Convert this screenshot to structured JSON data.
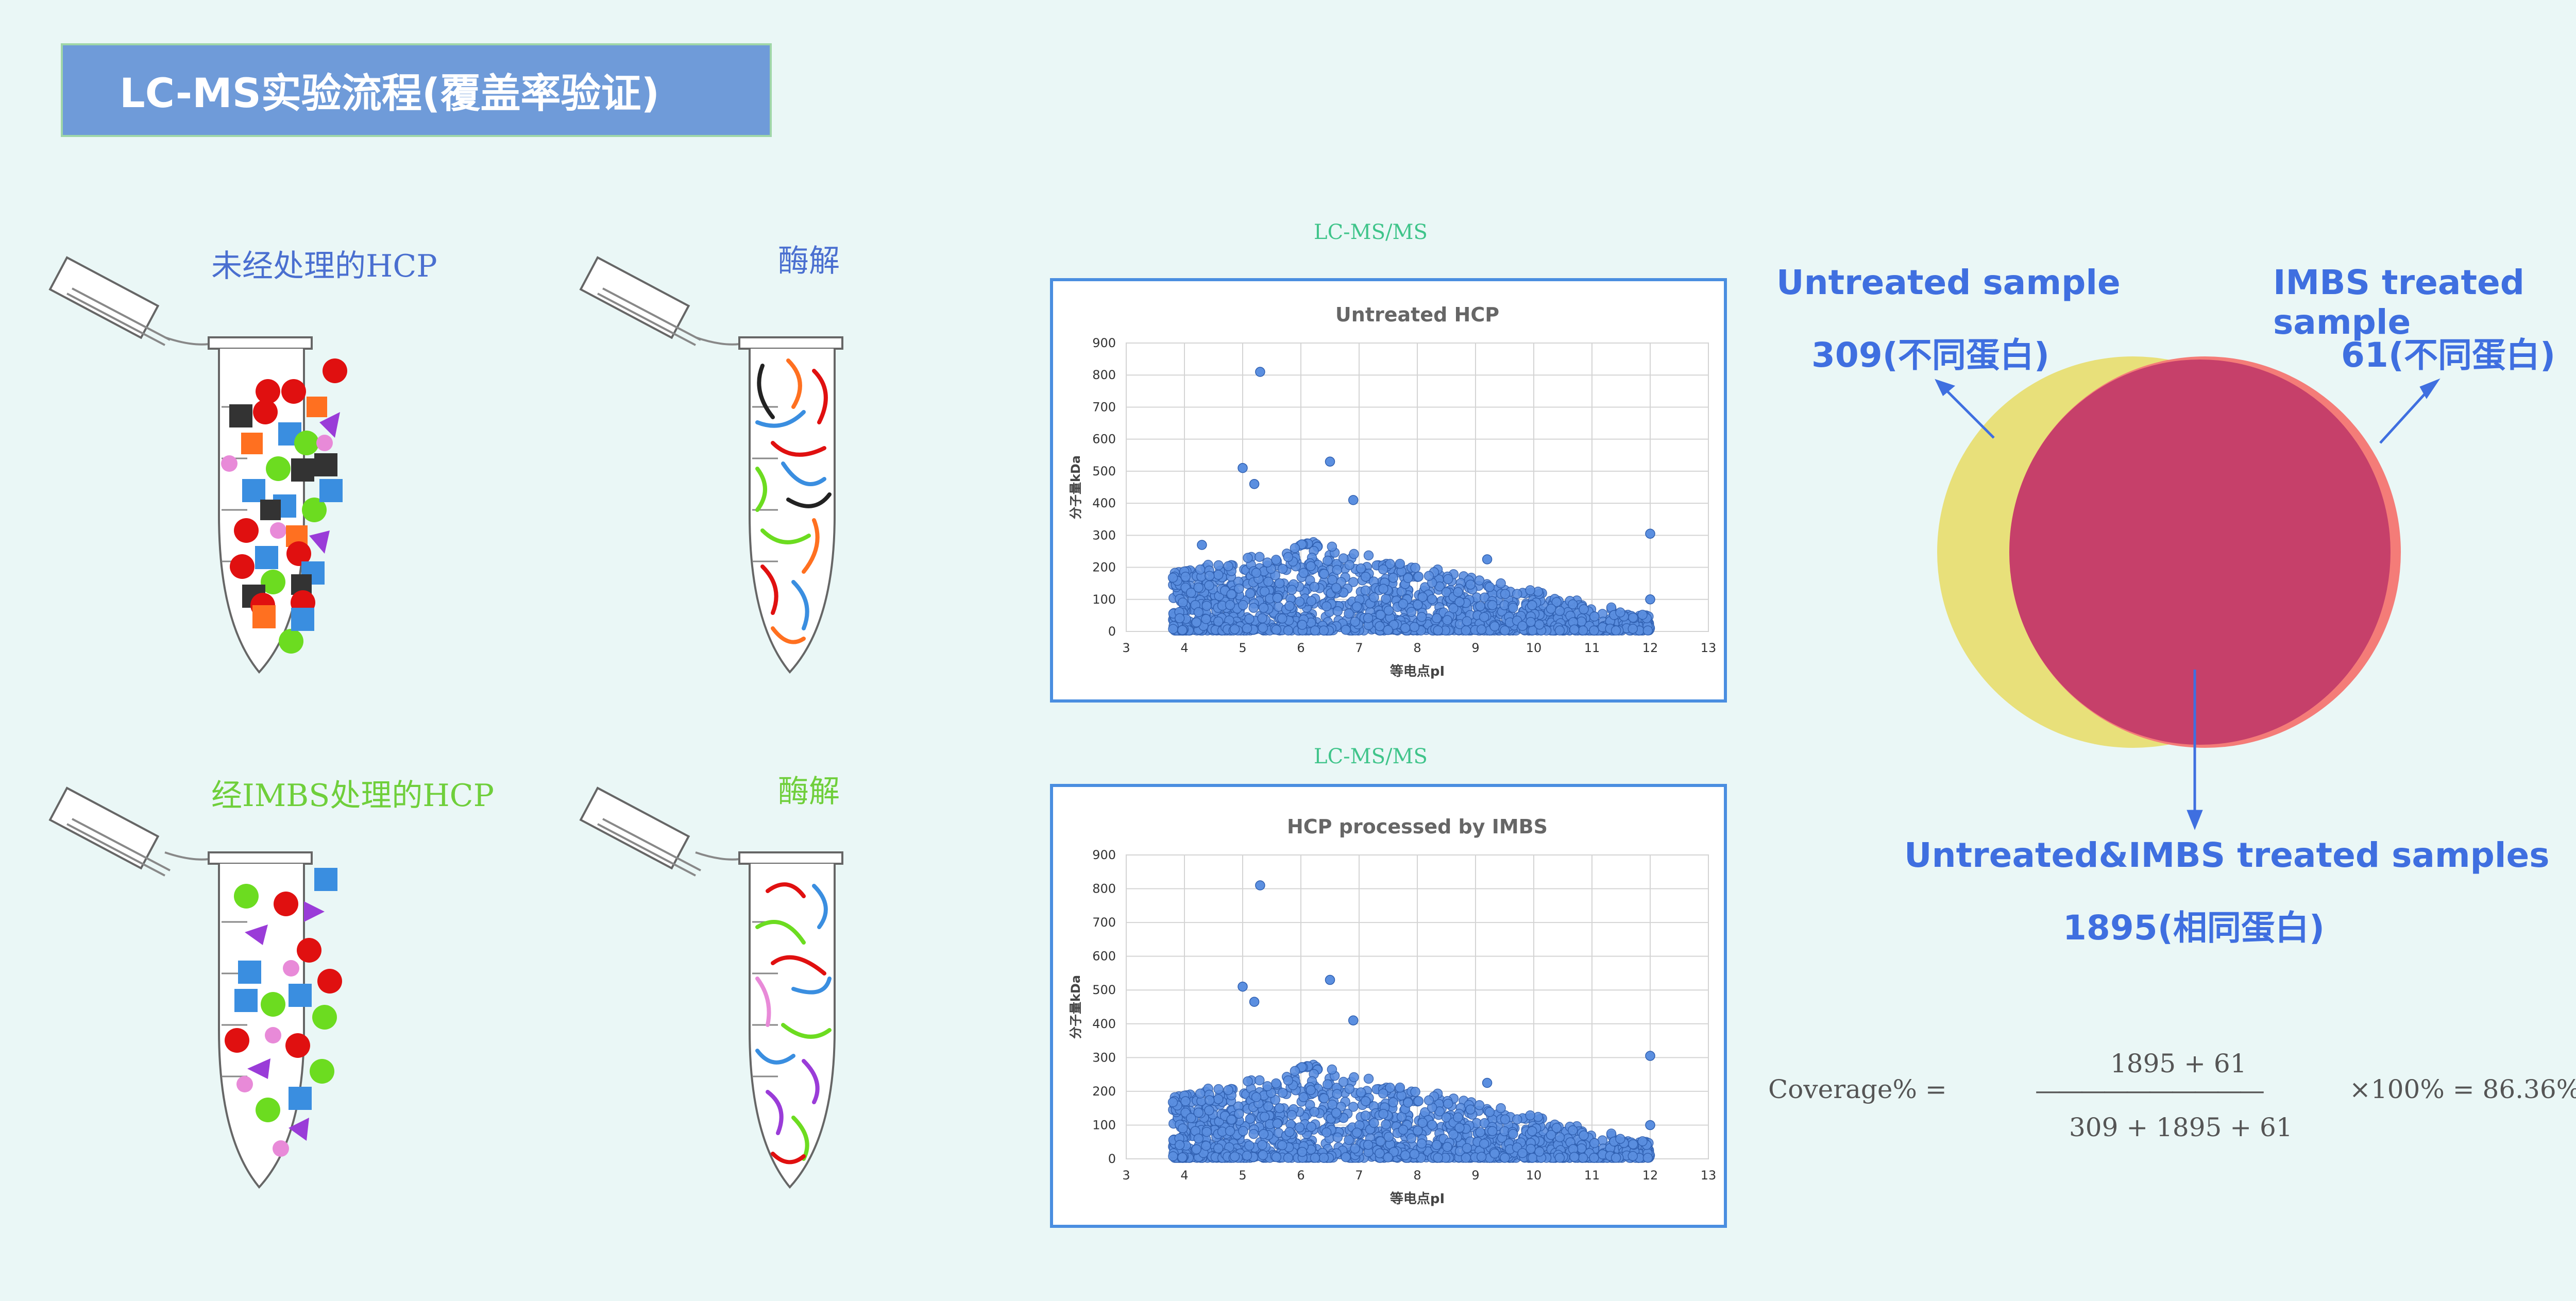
{
  "header": {
    "title": "LC-MS实验流程(覆盖率验证)"
  },
  "tubes": {
    "untreated_label": "未经处理的HCP",
    "digest_label_1": "酶解",
    "treated_label": "经IMBS处理的HCP",
    "digest_label_2": "酶解"
  },
  "lcms_label_1": "LC-MS/MS",
  "lcms_label_2": "LC-MS/MS",
  "venn": {
    "left_title": "Untreated sample",
    "left_count": "309(不同蛋白)",
    "right_title": "IMBS treated sample",
    "right_count": "61(不同蛋白)",
    "bottom_title": "Untreated&IMBS treated  samples",
    "bottom_count": "1895(相同蛋白)",
    "left_color": "#e8e07a",
    "right_color": "#f47c78",
    "overlap_color": "#c6406a"
  },
  "formula": {
    "lhs": "Coverage% =",
    "numerator": "1895 + 61",
    "bar": "——————————",
    "denominator": "309 + 1895 + 61",
    "rhs": "×100% = 86.36%"
  },
  "chart_data": [
    {
      "type": "scatter",
      "title": "Untreated HCP",
      "xlabel": "等电点pI",
      "ylabel": "分子量kDa",
      "xlim": [
        3,
        13
      ],
      "ylim": [
        0,
        900
      ],
      "xticks": [
        3,
        4,
        5,
        6,
        7,
        8,
        9,
        10,
        11,
        12,
        13
      ],
      "yticks": [
        0,
        100,
        200,
        300,
        400,
        500,
        600,
        700,
        800,
        900
      ],
      "grid": true,
      "marker_color": "#5b8fe0",
      "highlight_points": [
        {
          "x": 5.3,
          "y": 810
        },
        {
          "x": 6.5,
          "y": 530
        },
        {
          "x": 5.0,
          "y": 510
        },
        {
          "x": 5.2,
          "y": 460
        },
        {
          "x": 6.9,
          "y": 410
        },
        {
          "x": 12.0,
          "y": 305
        },
        {
          "x": 12.0,
          "y": 100
        },
        {
          "x": 9.2,
          "y": 225
        },
        {
          "x": 4.3,
          "y": 270
        }
      ]
    },
    {
      "type": "scatter",
      "title": "HCP processed by IMBS",
      "xlabel": "等电点pI",
      "ylabel": "分子量kDa",
      "xlim": [
        3,
        13
      ],
      "ylim": [
        0,
        900
      ],
      "xticks": [
        3,
        4,
        5,
        6,
        7,
        8,
        9,
        10,
        11,
        12,
        13
      ],
      "yticks": [
        0,
        100,
        200,
        300,
        400,
        500,
        600,
        700,
        800,
        900
      ],
      "grid": true,
      "marker_color": "#5b8fe0",
      "highlight_points": [
        {
          "x": 5.3,
          "y": 810
        },
        {
          "x": 6.5,
          "y": 530
        },
        {
          "x": 5.0,
          "y": 510
        },
        {
          "x": 5.2,
          "y": 465
        },
        {
          "x": 6.9,
          "y": 410
        },
        {
          "x": 12.0,
          "y": 305
        },
        {
          "x": 12.0,
          "y": 100
        },
        {
          "x": 9.2,
          "y": 225
        }
      ]
    }
  ]
}
